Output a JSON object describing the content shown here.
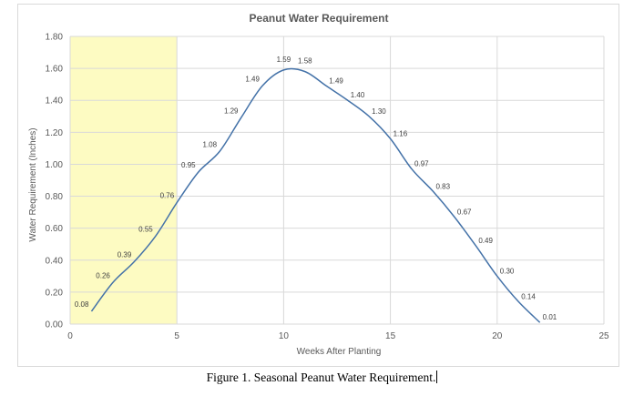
{
  "caption": "Figure 1.  Seasonal Peanut Water Requirement.",
  "chart_data": {
    "type": "line",
    "title": "Peanut Water Requirement",
    "xlabel": "Weeks After Planting",
    "ylabel": "Water Requirement (Inches)",
    "xlim": [
      0,
      25
    ],
    "ylim": [
      0,
      1.8
    ],
    "x_ticks": [
      "0",
      "5",
      "10",
      "15",
      "20",
      "25"
    ],
    "y_ticks": [
      "0.00",
      "0.20",
      "0.40",
      "0.60",
      "0.80",
      "1.00",
      "1.20",
      "1.40",
      "1.60",
      "1.80"
    ],
    "grid": true,
    "smoothed": true,
    "highlight_band": {
      "x": [
        0,
        5
      ],
      "color": "#fdfbc2"
    },
    "series": [
      {
        "color": "#4472a8",
        "points": [
          {
            "x": 1,
            "y": 0.08,
            "label": "0.08"
          },
          {
            "x": 2,
            "y": 0.26,
            "label": "0.26"
          },
          {
            "x": 3,
            "y": 0.39,
            "label": "0.39"
          },
          {
            "x": 4,
            "y": 0.55,
            "label": "0.55"
          },
          {
            "x": 5,
            "y": 0.76,
            "label": "0.76"
          },
          {
            "x": 6,
            "y": 0.95,
            "label": "0.95"
          },
          {
            "x": 7,
            "y": 1.08,
            "label": "1.08"
          },
          {
            "x": 8,
            "y": 1.29,
            "label": "1.29"
          },
          {
            "x": 9,
            "y": 1.49,
            "label": "1.49"
          },
          {
            "x": 10,
            "y": 1.59,
            "label": "1.59"
          },
          {
            "x": 11,
            "y": 1.58,
            "label": "1.58"
          },
          {
            "x": 12,
            "y": 1.49,
            "label": "1.49"
          },
          {
            "x": 13,
            "y": 1.4,
            "label": "1.40"
          },
          {
            "x": 14,
            "y": 1.3,
            "label": "1.30"
          },
          {
            "x": 15,
            "y": 1.16,
            "label": "1.16"
          },
          {
            "x": 16,
            "y": 0.97,
            "label": "0.97"
          },
          {
            "x": 17,
            "y": 0.83,
            "label": "0.83"
          },
          {
            "x": 18,
            "y": 0.67,
            "label": "0.67"
          },
          {
            "x": 19,
            "y": 0.49,
            "label": "0.49"
          },
          {
            "x": 20,
            "y": 0.3,
            "label": "0.30"
          },
          {
            "x": 21,
            "y": 0.14,
            "label": "0.14"
          },
          {
            "x": 22,
            "y": 0.01,
            "label": "0.01"
          }
        ]
      }
    ]
  }
}
